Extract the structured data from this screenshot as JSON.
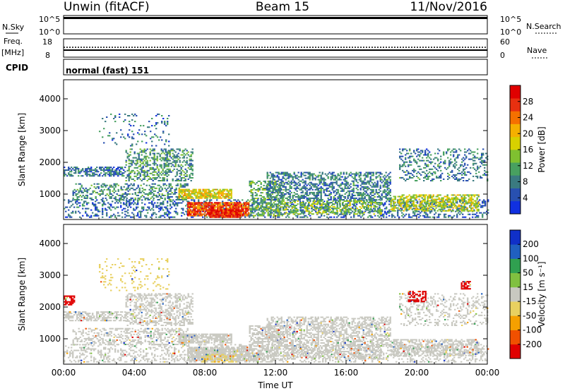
{
  "header": {
    "station": "Unwin (fitACF)",
    "beam": "Beam 15",
    "date": "11/Nov/2016"
  },
  "panels": {
    "nsky": {
      "label": "N.Sky",
      "top_tick": "10^5",
      "bottom_tick": "10^0",
      "right_label": "N.Search"
    },
    "freq": {
      "label_line1": "Freq.",
      "label_line2": "[MHz]",
      "left_ticks": [
        "18",
        "8"
      ],
      "right_ticks": [
        "60",
        "0"
      ],
      "right_label": "Nave"
    },
    "cpid": {
      "label": "CPID",
      "text": "normal (fast) 151"
    }
  },
  "colors": {
    "power": [
      "#1030e0",
      "#2850b0",
      "#3a7a80",
      "#48a060",
      "#7fc030",
      "#d8d000",
      "#f5b000",
      "#f57000",
      "#e83010",
      "#e00000"
    ],
    "velocity": [
      "#e00000",
      "#f05000",
      "#f5a000",
      "#e8d060",
      "#c8c8c0",
      "#80c040",
      "#30a050",
      "#2060c0",
      "#1030c8"
    ]
  },
  "chart_data": [
    {
      "type": "heatmap",
      "parameter": "power",
      "ylabel": "Slant Range [km]",
      "yticks": [
        1000,
        2000,
        3000,
        4000
      ],
      "ylim": [
        200,
        4600
      ],
      "xlim": [
        0,
        24
      ],
      "colorbar_label": "Power [dB]",
      "colorbar_ticks": [
        "4",
        "8",
        "12",
        "16",
        "20",
        "24",
        "28"
      ],
      "clim": [
        0,
        32
      ],
      "regions": [
        {
          "x": [
            0,
            24
          ],
          "y": [
            250,
            800
          ],
          "value": 6,
          "density": 0.3
        },
        {
          "x": [
            0,
            3.5
          ],
          "y": [
            1550,
            1850
          ],
          "value": 7,
          "density": 0.55
        },
        {
          "x": [
            3.5,
            7.3
          ],
          "y": [
            1400,
            2400
          ],
          "value": 10,
          "density": 0.4
        },
        {
          "x": [
            0.5,
            7
          ],
          "y": [
            800,
            1300
          ],
          "value": 9,
          "density": 0.4
        },
        {
          "x": [
            6.5,
            9.5
          ],
          "y": [
            850,
            1150
          ],
          "value": 18,
          "density": 0.8
        },
        {
          "x": [
            7,
            10.5
          ],
          "y": [
            300,
            750
          ],
          "value": 26,
          "density": 0.85
        },
        {
          "x": [
            8.2,
            10
          ],
          "y": [
            250,
            500
          ],
          "value": 29,
          "density": 0.9
        },
        {
          "x": [
            10.5,
            12.5
          ],
          "y": [
            300,
            1400
          ],
          "value": 12,
          "density": 0.5
        },
        {
          "x": [
            11.5,
            18.5
          ],
          "y": [
            800,
            1700
          ],
          "value": 8,
          "density": 0.5
        },
        {
          "x": [
            12.5,
            18
          ],
          "y": [
            350,
            800
          ],
          "value": 14,
          "density": 0.45
        },
        {
          "x": [
            18.5,
            23.5
          ],
          "y": [
            450,
            950
          ],
          "value": 16,
          "density": 0.55
        },
        {
          "x": [
            19,
            24
          ],
          "y": [
            1400,
            2400
          ],
          "value": 8,
          "density": 0.25
        },
        {
          "x": [
            2,
            6
          ],
          "y": [
            2500,
            3500
          ],
          "value": 7,
          "density": 0.1
        }
      ]
    },
    {
      "type": "heatmap",
      "parameter": "velocity",
      "xlabel": "Time UT",
      "ylabel": "Slant Range [km]",
      "yticks": [
        1000,
        2000,
        3000,
        4000
      ],
      "ylim": [
        200,
        4600
      ],
      "xlim": [
        0,
        24
      ],
      "xticks": [
        "00:00",
        "04:00",
        "08:00",
        "12:00",
        "16:00",
        "20:00",
        "00:00"
      ],
      "colorbar_label": "Velocity [m s⁻¹]",
      "colorbar_ticks": [
        "-200",
        "-100",
        "-50",
        "-15",
        "15",
        "50",
        "100",
        "200"
      ],
      "clim": [
        -250,
        250
      ],
      "regions": [
        {
          "x": [
            0,
            24
          ],
          "y": [
            250,
            800
          ],
          "value": 0,
          "density": 0.3
        },
        {
          "x": [
            0,
            3.5
          ],
          "y": [
            1550,
            1850
          ],
          "value": 0,
          "density": 0.55
        },
        {
          "x": [
            3.5,
            7.3
          ],
          "y": [
            1400,
            2400
          ],
          "value": 0,
          "density": 0.4
        },
        {
          "x": [
            0.5,
            7
          ],
          "y": [
            800,
            1300
          ],
          "value": 0,
          "density": 0.4
        },
        {
          "x": [
            6.5,
            9.5
          ],
          "y": [
            850,
            1150
          ],
          "value": 0,
          "density": 0.8
        },
        {
          "x": [
            7,
            10.5
          ],
          "y": [
            300,
            750
          ],
          "value": -8,
          "density": 0.85
        },
        {
          "x": [
            10.5,
            12.5
          ],
          "y": [
            300,
            1400
          ],
          "value": 0,
          "density": 0.5
        },
        {
          "x": [
            11.5,
            18.5
          ],
          "y": [
            800,
            1700
          ],
          "value": 0,
          "density": 0.5
        },
        {
          "x": [
            12.5,
            18
          ],
          "y": [
            350,
            800
          ],
          "value": 0,
          "density": 0.45
        },
        {
          "x": [
            18.5,
            23.5
          ],
          "y": [
            450,
            950
          ],
          "value": 0,
          "density": 0.55
        },
        {
          "x": [
            19,
            24
          ],
          "y": [
            1400,
            2400
          ],
          "value": 0,
          "density": 0.25
        },
        {
          "x": [
            0,
            0.6
          ],
          "y": [
            2050,
            2350
          ],
          "value": -220,
          "density": 0.7
        },
        {
          "x": [
            19.5,
            20.5
          ],
          "y": [
            2150,
            2500
          ],
          "value": -220,
          "density": 0.5
        },
        {
          "x": [
            22.5,
            23
          ],
          "y": [
            2550,
            2800
          ],
          "value": -220,
          "density": 0.7
        },
        {
          "x": [
            7.8,
            9.8
          ],
          "y": [
            250,
            500
          ],
          "value": -70,
          "density": 0.35
        },
        {
          "x": [
            2,
            6
          ],
          "y": [
            2500,
            3500
          ],
          "value": -60,
          "density": 0.1
        }
      ]
    }
  ]
}
